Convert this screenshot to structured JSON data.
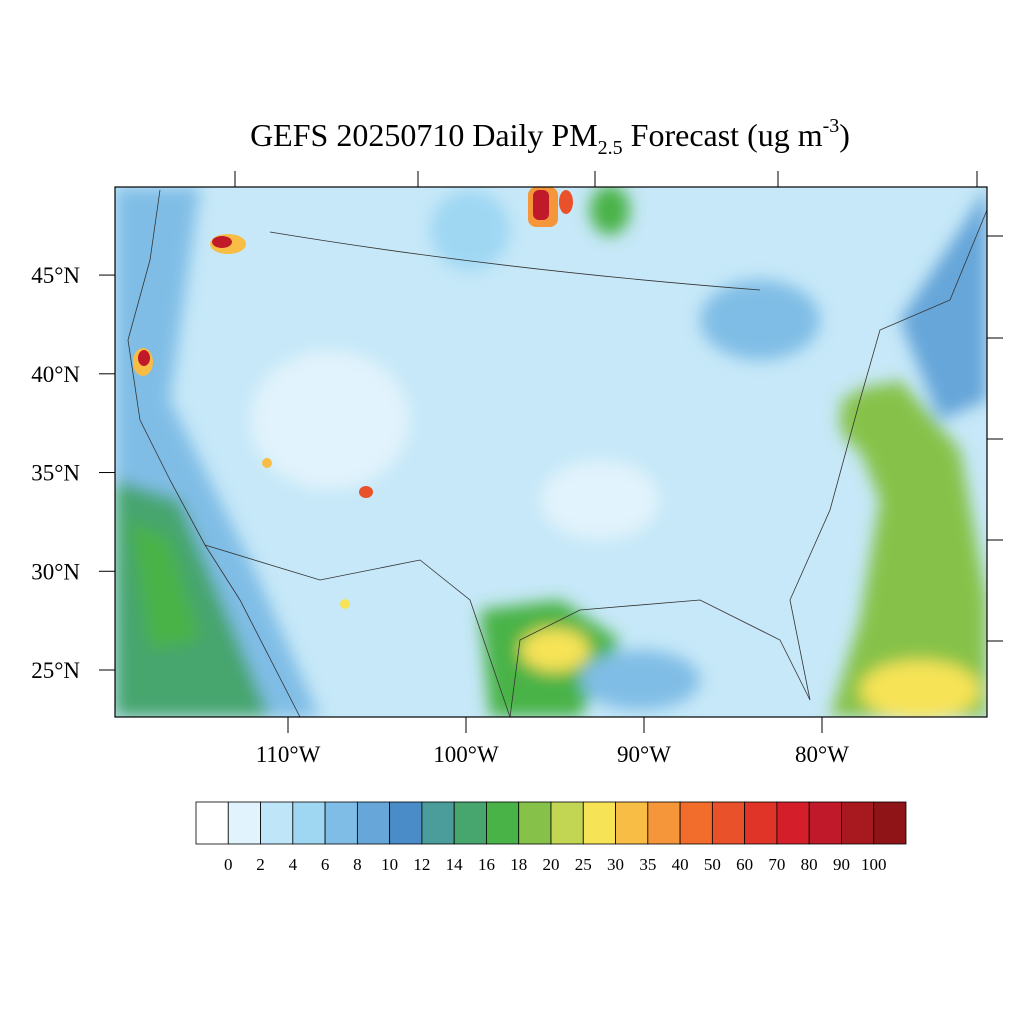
{
  "title": {
    "main": "GEFS 20250710 Daily PM",
    "subscript": "2.5",
    "middle": " Forecast (ug m",
    "superscript": "-3",
    "end": ")"
  },
  "map": {
    "lat_range": [
      22.62,
      49.46
    ],
    "lon_range": [
      -119.72,
      -70.73
    ],
    "lat_ticks": [
      {
        "value": 45,
        "label": "45°N"
      },
      {
        "value": 40,
        "label": "40°N"
      },
      {
        "value": 35,
        "label": "35°N"
      },
      {
        "value": 30,
        "label": "30°N"
      },
      {
        "value": 25,
        "label": "25°N"
      }
    ],
    "lon_ticks": [
      {
        "value": -110,
        "label": "110°W"
      },
      {
        "value": -100,
        "label": "100°W"
      },
      {
        "value": -90,
        "label": "90°W"
      },
      {
        "value": -80,
        "label": "80°W"
      }
    ]
  },
  "colorbar": {
    "levels": [
      0,
      2,
      4,
      6,
      8,
      10,
      12,
      14,
      16,
      18,
      20,
      25,
      30,
      35,
      40,
      50,
      60,
      70,
      80,
      90,
      100
    ],
    "colors": [
      "#ffffff",
      "#e1f3fc",
      "#bfe6f8",
      "#9fd7f3",
      "#80bde6",
      "#66a6d9",
      "#4a8cc8",
      "#4a9d9a",
      "#47a56e",
      "#49b347",
      "#86c24a",
      "#c3d654",
      "#f7e356",
      "#f8bd44",
      "#f6963a",
      "#f26d2c",
      "#e9512b",
      "#e03428",
      "#d41f2b",
      "#c0192a",
      "#a8181f",
      "#8f1418"
    ]
  }
}
